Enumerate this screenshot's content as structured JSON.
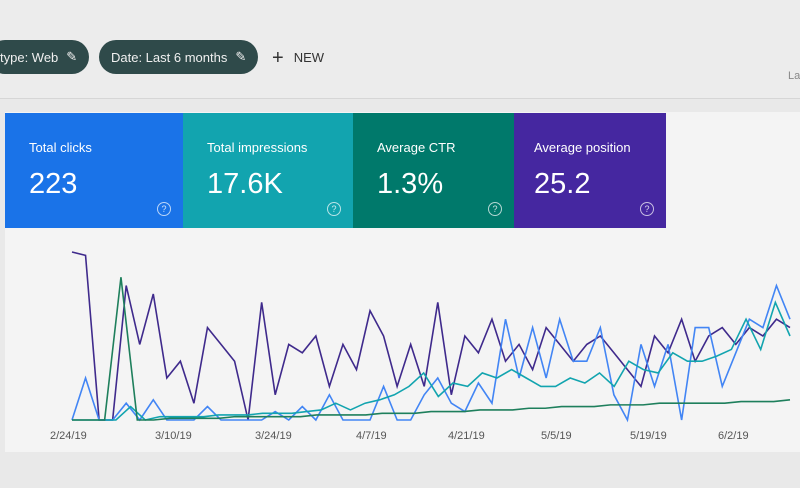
{
  "filters": [
    {
      "label": "type: Web",
      "icon": "pencil-icon"
    },
    {
      "label": "Date: Last 6 months",
      "icon": "pencil-icon"
    }
  ],
  "new_label": "NEW",
  "right_partial": "La",
  "cards": [
    {
      "label": "Total clicks",
      "value": "223",
      "color": "#1a73e8"
    },
    {
      "label": "Total impressions",
      "value": "17.6K",
      "color": "#12a4af"
    },
    {
      "label": "Average CTR",
      "value": "1.3%",
      "color": "#00796b"
    },
    {
      "label": "Average position",
      "value": "25.2",
      "color": "#4527a0"
    }
  ],
  "help_icon": "?",
  "chart_data": {
    "type": "line",
    "x_tick_labels": [
      "2/24/19",
      "3/10/19",
      "3/24/19",
      "4/7/19",
      "4/21/19",
      "5/5/19",
      "5/19/19",
      "6/2/19"
    ],
    "y_axis_labels_shown": false,
    "grid": false,
    "series": [
      {
        "color": "#3f2a8c",
        "values": [
          100,
          98,
          0,
          0,
          80,
          45,
          75,
          25,
          35,
          10,
          55,
          45,
          35,
          0,
          70,
          15,
          45,
          40,
          50,
          20,
          45,
          30,
          65,
          50,
          20,
          45,
          20,
          70,
          15,
          50,
          40,
          60,
          35,
          45,
          30,
          55,
          45,
          35,
          45,
          50,
          40,
          30,
          20,
          50,
          40,
          60,
          35,
          50,
          55,
          45,
          55,
          50,
          60,
          55
        ]
      },
      {
        "color": "#4285f4",
        "values": [
          0,
          25,
          0,
          0,
          10,
          0,
          12,
          0,
          0,
          0,
          8,
          0,
          0,
          0,
          0,
          5,
          0,
          8,
          0,
          15,
          0,
          0,
          0,
          20,
          0,
          0,
          15,
          25,
          10,
          5,
          22,
          10,
          60,
          25,
          55,
          25,
          60,
          35,
          35,
          55,
          15,
          0,
          45,
          20,
          45,
          0,
          55,
          55,
          20,
          40,
          60,
          55,
          80,
          60
        ]
      },
      {
        "color": "#12a4af",
        "values": [
          0,
          0,
          0,
          0,
          8,
          0,
          2,
          2,
          2,
          2,
          3,
          3,
          3,
          4,
          4,
          4,
          5,
          6,
          10,
          6,
          10,
          12,
          15,
          20,
          28,
          14,
          22,
          20,
          28,
          25,
          30,
          25,
          20,
          20,
          25,
          22,
          28,
          20,
          35,
          30,
          28,
          40,
          35,
          35,
          38,
          42,
          60,
          42,
          70,
          50
        ]
      },
      {
        "color": "#1e7f5c",
        "values": [
          0,
          0,
          0,
          85,
          0,
          0,
          1,
          1,
          1,
          1,
          2,
          2,
          2,
          2,
          2,
          3,
          3,
          3,
          3,
          4,
          4,
          4,
          5,
          5,
          5,
          6,
          6,
          6,
          7,
          7,
          8,
          8,
          8,
          9,
          9,
          9,
          10,
          10,
          10,
          10,
          10,
          11,
          11,
          11,
          12
        ]
      }
    ]
  }
}
